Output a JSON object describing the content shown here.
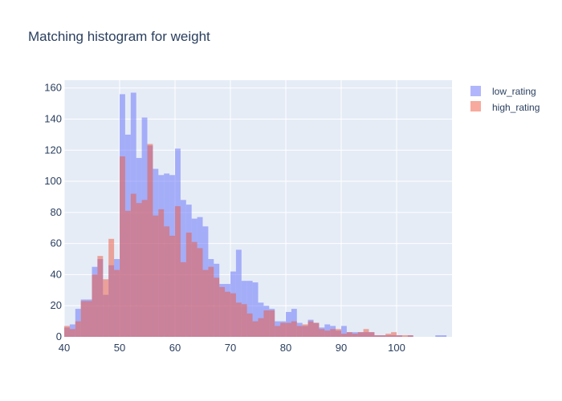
{
  "chart_data": {
    "type": "bar",
    "title": "Matching histogram for weight",
    "xlabel": "",
    "ylabel": "",
    "bin_width": 1,
    "xlim": [
      40,
      110
    ],
    "ylim": [
      0,
      165
    ],
    "xticks": [
      40,
      50,
      60,
      70,
      80,
      90,
      100
    ],
    "yticks": [
      0,
      20,
      40,
      60,
      80,
      100,
      120,
      140,
      160
    ],
    "grid": true,
    "legend_position": "top-right",
    "series": [
      {
        "name": "low_rating",
        "color": "#636efa",
        "bin_starts": [
          40,
          41,
          42,
          43,
          44,
          45,
          46,
          47,
          48,
          49,
          50,
          51,
          52,
          53,
          54,
          55,
          56,
          57,
          58,
          59,
          60,
          61,
          62,
          63,
          64,
          65,
          66,
          67,
          68,
          69,
          70,
          71,
          72,
          73,
          74,
          75,
          76,
          77,
          78,
          79,
          80,
          81,
          82,
          83,
          84,
          85,
          86,
          87,
          88,
          89,
          90,
          91,
          92,
          93,
          94,
          95,
          96,
          97,
          98,
          99,
          100,
          101,
          102,
          103,
          104,
          105,
          106,
          107,
          108
        ],
        "values": [
          6,
          8,
          18,
          24,
          24,
          45,
          50,
          27,
          46,
          50,
          156,
          130,
          157,
          115,
          141,
          123,
          108,
          104,
          105,
          104,
          121,
          88,
          85,
          76,
          77,
          71,
          50,
          47,
          34,
          34,
          42,
          56,
          36,
          36,
          35,
          22,
          20,
          18,
          10,
          10,
          16,
          18,
          9,
          7,
          11,
          9,
          6,
          8,
          7,
          4,
          7,
          3,
          3,
          3,
          3,
          3,
          1,
          1,
          1,
          1,
          1,
          0,
          1,
          0,
          0,
          0,
          0,
          1,
          1
        ]
      },
      {
        "name": "high_rating",
        "color": "#ef553b",
        "bin_starts": [
          40,
          41,
          42,
          43,
          44,
          45,
          46,
          47,
          48,
          49,
          50,
          51,
          52,
          53,
          54,
          55,
          56,
          57,
          58,
          59,
          60,
          61,
          62,
          63,
          64,
          65,
          66,
          67,
          68,
          69,
          70,
          71,
          72,
          73,
          74,
          75,
          76,
          77,
          78,
          79,
          80,
          81,
          82,
          83,
          84,
          85,
          86,
          87,
          88,
          89,
          90,
          91,
          92,
          93,
          94,
          95,
          96,
          97,
          98,
          99,
          100,
          101,
          102
        ],
        "values": [
          7,
          5,
          10,
          23,
          23,
          40,
          52,
          37,
          63,
          43,
          116,
          81,
          92,
          86,
          88,
          124,
          78,
          82,
          71,
          65,
          84,
          48,
          67,
          61,
          57,
          43,
          45,
          38,
          32,
          29,
          28,
          22,
          21,
          15,
          10,
          12,
          17,
          17,
          7,
          9,
          9,
          10,
          7,
          8,
          10,
          9,
          5,
          4,
          5,
          5,
          2,
          3,
          2,
          3,
          5,
          3,
          1,
          1,
          2,
          3,
          1,
          1,
          1
        ]
      }
    ]
  }
}
